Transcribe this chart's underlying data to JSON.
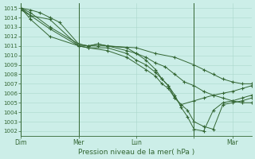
{
  "xlabel": "Pression niveau de la mer( hPa )",
  "bg_color": "#cceee8",
  "grid_color": "#aad8cc",
  "line_color": "#336633",
  "tick_label_color": "#336633",
  "axis_color": "#336633",
  "ylim": [
    1001.5,
    1015.5
  ],
  "yticks": [
    1002,
    1003,
    1004,
    1005,
    1006,
    1007,
    1008,
    1009,
    1010,
    1011,
    1012,
    1013,
    1014,
    1015
  ],
  "xmax": 72,
  "xtick_positions": [
    0,
    18,
    36,
    54,
    66
  ],
  "xtick_labels": [
    "Dim",
    "Mer",
    "Lun",
    "",
    "Mar"
  ],
  "vlines": [
    0,
    18,
    54
  ],
  "series": [
    {
      "x": [
        0,
        3,
        9,
        18,
        21,
        24,
        27,
        36,
        42,
        48,
        54,
        57,
        60,
        63,
        66,
        69,
        72
      ],
      "y": [
        1014.8,
        1014.2,
        1013.8,
        1011.0,
        1011.0,
        1011.2,
        1011.0,
        1010.8,
        1010.2,
        1009.8,
        1009.0,
        1008.5,
        1008.0,
        1007.5,
        1007.2,
        1007.0,
        1007.0
      ]
    },
    {
      "x": [
        0,
        3,
        6,
        9,
        12,
        18,
        21,
        24,
        27,
        33,
        36,
        39,
        42,
        45,
        48,
        51,
        54,
        57,
        60,
        63,
        66,
        69,
        72
      ],
      "y": [
        1015.0,
        1014.8,
        1014.5,
        1014.0,
        1013.5,
        1011.2,
        1011.0,
        1011.0,
        1011.0,
        1010.5,
        1010.2,
        1009.8,
        1009.2,
        1008.8,
        1008.0,
        1007.2,
        1006.8,
        1006.2,
        1005.8,
        1005.5,
        1005.2,
        1005.0,
        1005.0
      ]
    },
    {
      "x": [
        0,
        3,
        9,
        18,
        21,
        24,
        27,
        33,
        36,
        39,
        42,
        44,
        46,
        48,
        50,
        52,
        54,
        57,
        60,
        63,
        66,
        69,
        72
      ],
      "y": [
        1015.0,
        1014.5,
        1013.0,
        1011.2,
        1011.0,
        1011.2,
        1011.0,
        1010.8,
        1010.2,
        1009.5,
        1008.5,
        1007.5,
        1006.8,
        1005.5,
        1004.8,
        1004.2,
        1003.0,
        1002.5,
        1002.2,
        1004.8,
        1005.0,
        1005.2,
        1005.5
      ]
    },
    {
      "x": [
        0,
        3,
        9,
        18,
        21,
        27,
        33,
        36,
        39,
        42,
        44,
        46,
        48,
        50,
        52,
        54,
        57,
        60,
        63,
        66,
        69,
        72
      ],
      "y": [
        1015.0,
        1014.2,
        1012.8,
        1011.0,
        1010.8,
        1010.8,
        1010.2,
        1009.5,
        1009.0,
        1008.2,
        1007.5,
        1006.8,
        1005.8,
        1004.5,
        1003.5,
        1002.2,
        1002.0,
        1004.2,
        1005.0,
        1005.2,
        1005.5,
        1005.8
      ]
    },
    {
      "x": [
        0,
        3,
        9,
        18,
        21,
        27,
        33,
        39,
        42,
        44,
        46,
        48,
        50,
        54,
        57,
        60,
        63,
        66,
        69,
        72
      ],
      "y": [
        1015.0,
        1013.8,
        1012.0,
        1011.0,
        1010.8,
        1010.5,
        1009.8,
        1008.5,
        1007.8,
        1007.0,
        1006.5,
        1005.5,
        1004.8,
        1005.2,
        1005.5,
        1005.8,
        1006.0,
        1006.2,
        1006.5,
        1006.8
      ]
    }
  ]
}
